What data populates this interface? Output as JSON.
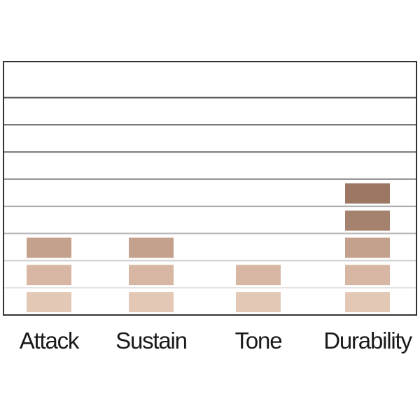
{
  "chart_data": {
    "type": "block-bar",
    "categories": [
      "Attack",
      "Sustain",
      "Tone",
      "Durability"
    ],
    "values": [
      3,
      3,
      2,
      5
    ],
    "level_colors": [
      "#e3c8b5",
      "#d7b7a3",
      "#c4a18c",
      "#a5826d",
      "#9b7764"
    ],
    "ylim": [
      0,
      9.3
    ],
    "yticks": [
      1,
      2,
      3,
      4,
      5,
      6,
      7,
      8
    ],
    "grid": true
  }
}
